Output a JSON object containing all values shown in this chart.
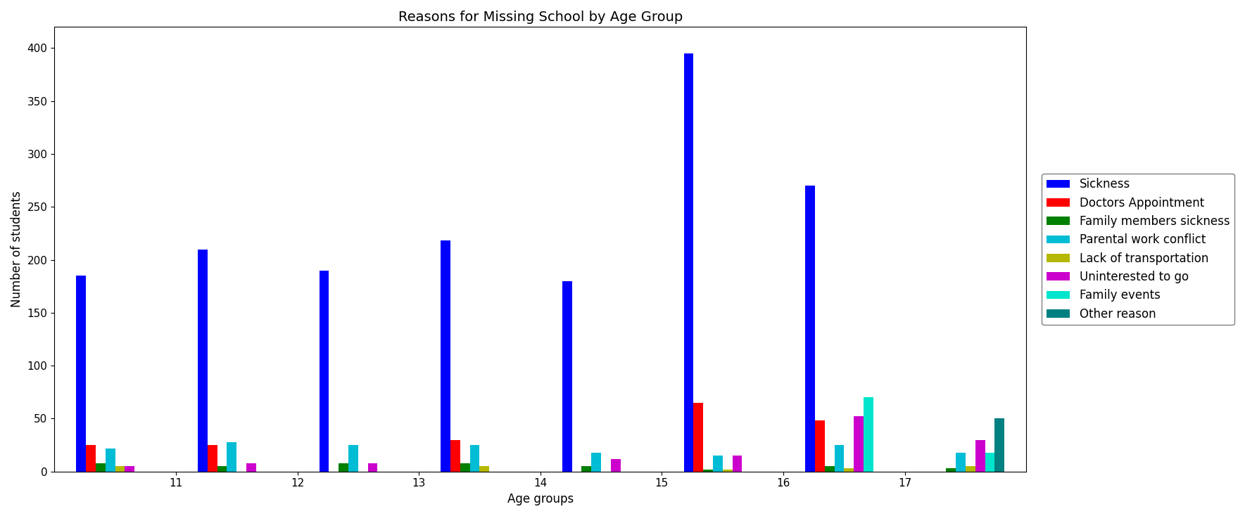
{
  "title": "Reasons for Missing School by Age Group",
  "xlabel": "Age groups",
  "ylabel": "Number of students",
  "x_centers": [
    10.5,
    11.5,
    12.5,
    13.5,
    14.5,
    15.5,
    16.5,
    17.5
  ],
  "x_ticks": [
    11,
    12,
    13,
    14,
    15,
    16,
    17
  ],
  "series": [
    {
      "label": "Sickness",
      "color": "#0000ff",
      "values": [
        185,
        210,
        190,
        218,
        180,
        395,
        270,
        0
      ]
    },
    {
      "label": "Doctors Appointment",
      "color": "#ff0000",
      "values": [
        25,
        25,
        0,
        30,
        0,
        65,
        48,
        0
      ]
    },
    {
      "label": "Family members sickness",
      "color": "#008000",
      "values": [
        8,
        5,
        8,
        8,
        5,
        2,
        5,
        3
      ]
    },
    {
      "label": "Parental work conflict",
      "color": "#00bcd4",
      "values": [
        22,
        28,
        25,
        25,
        18,
        15,
        25,
        18
      ]
    },
    {
      "label": "Lack of transportation",
      "color": "#b5b800",
      "values": [
        5,
        0,
        0,
        5,
        0,
        2,
        3,
        5
      ]
    },
    {
      "label": "Uninterested to go",
      "color": "#cc00cc",
      "values": [
        5,
        8,
        8,
        0,
        12,
        15,
        52,
        30
      ]
    },
    {
      "label": "Family events",
      "color": "#00e5cc",
      "values": [
        0,
        0,
        0,
        0,
        0,
        0,
        70,
        18
      ]
    },
    {
      "label": "Other reason",
      "color": "#008080",
      "values": [
        0,
        0,
        0,
        0,
        0,
        0,
        0,
        50
      ]
    }
  ],
  "ylim": [
    0,
    420
  ],
  "bar_width": 0.08,
  "figsize": [
    17.69,
    7.34
  ],
  "dpi": 100
}
